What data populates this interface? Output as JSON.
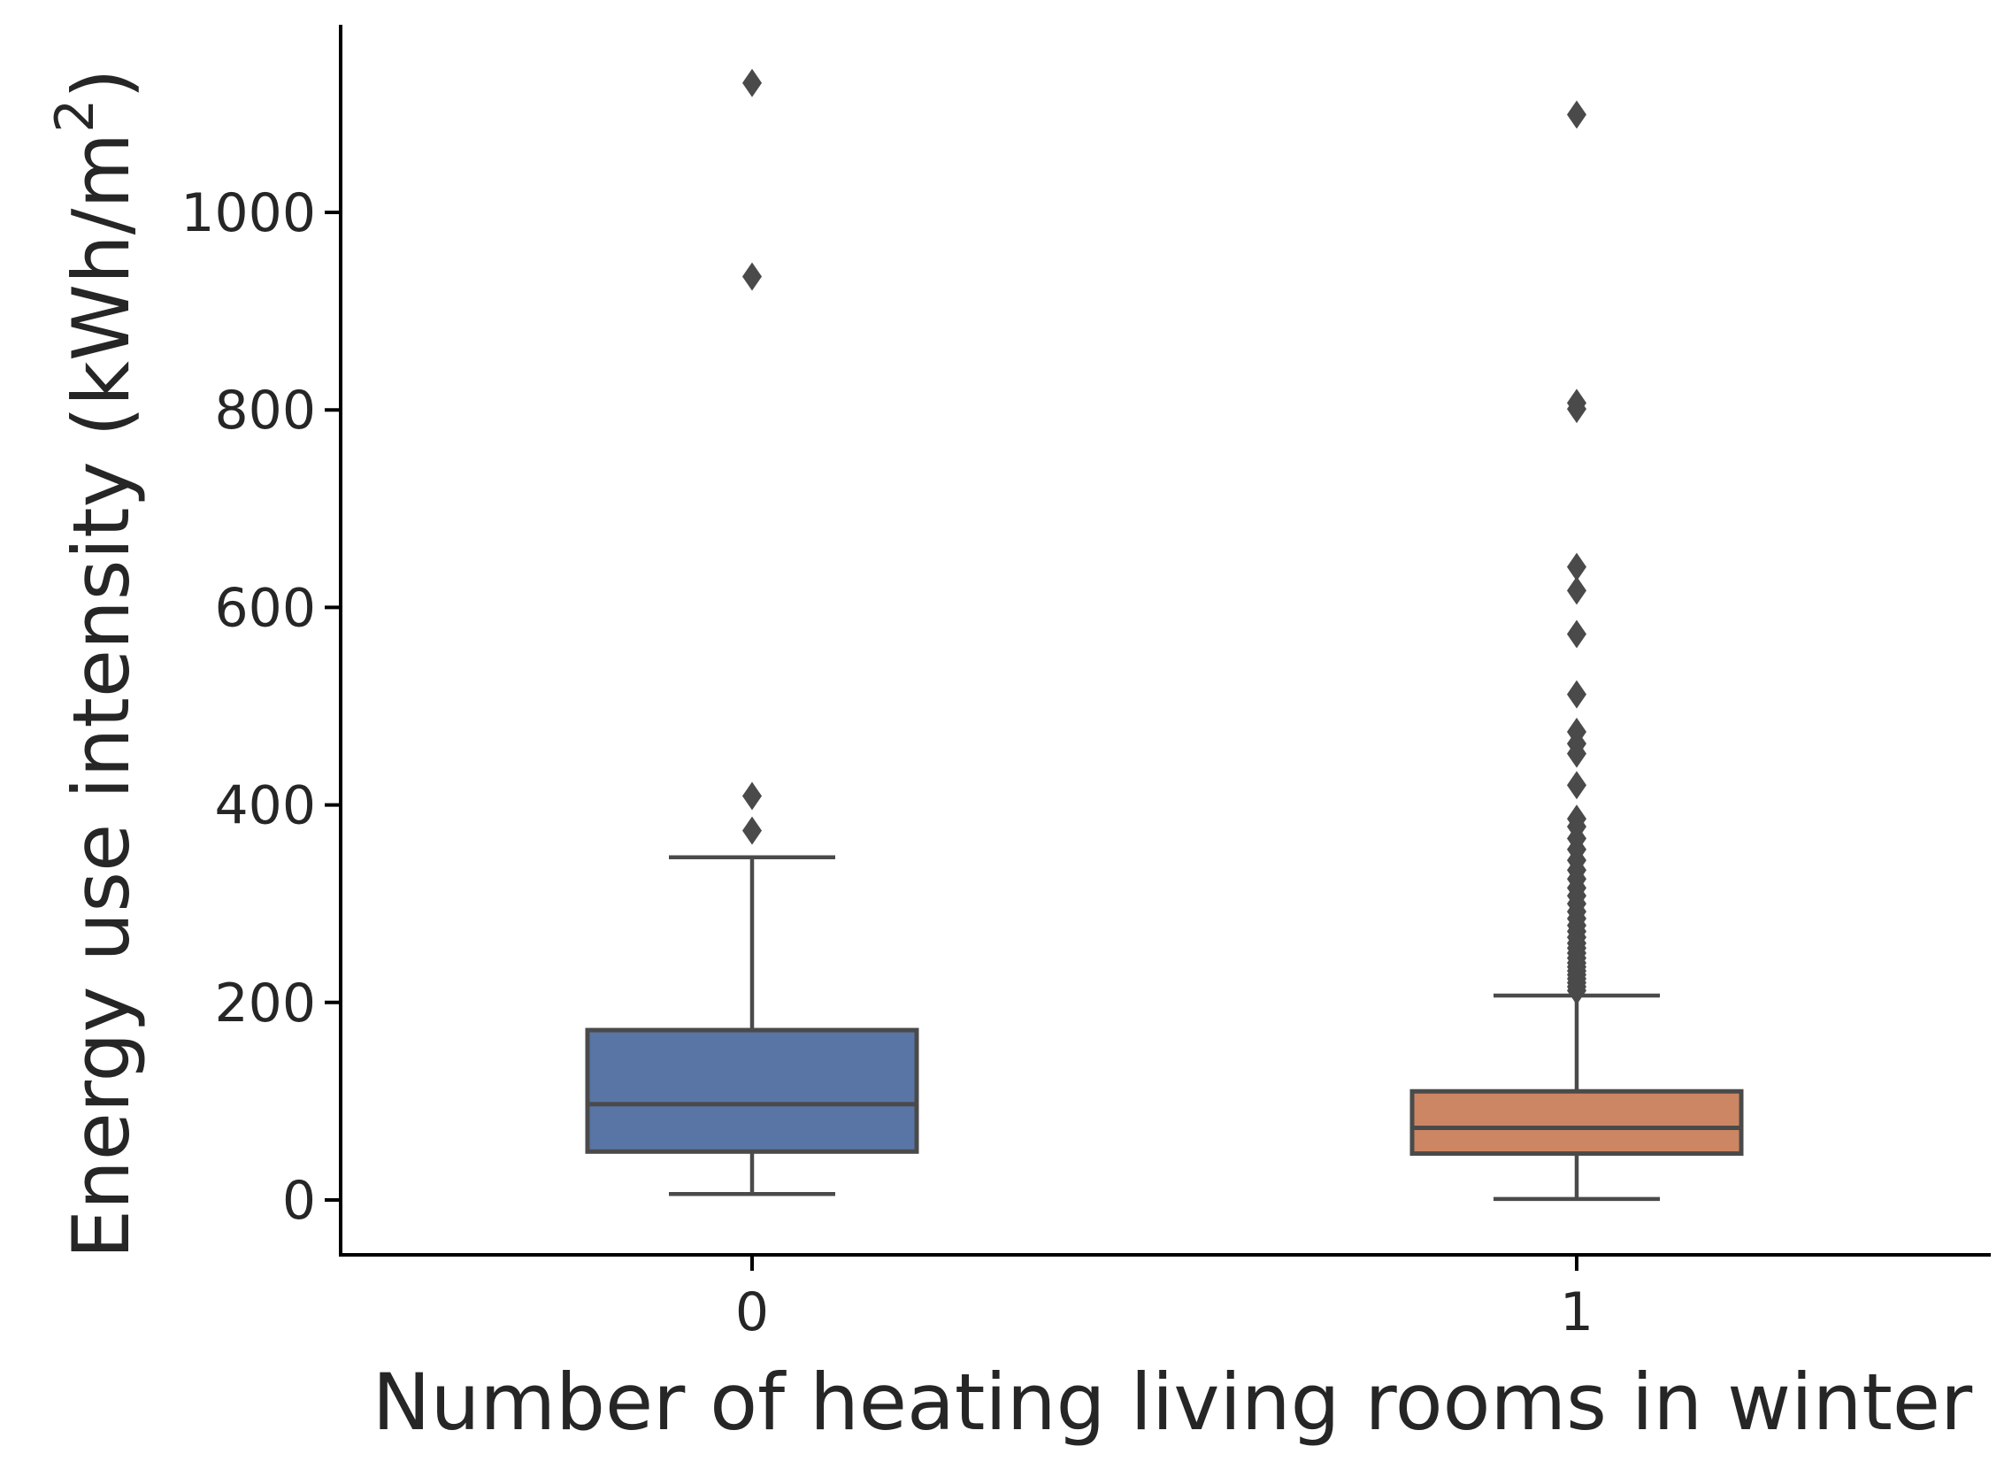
{
  "chart_data": {
    "type": "box",
    "xlabel": "Number of heating living rooms in winter",
    "ylabel": "Energy use intensity (kWh/m",
    "ylabel_superscript": "2",
    "ylabel_close": ")",
    "categories": [
      "0",
      "1"
    ],
    "yticks": [
      0,
      200,
      400,
      600,
      800,
      1000
    ],
    "ylim": [
      -55,
      1195
    ],
    "grid": false,
    "boxes": [
      {
        "category": "0",
        "color": "#5975a6",
        "whisker_low": 6,
        "q1": 49,
        "median": 97,
        "q3": 172,
        "whisker_high": 347,
        "outliers": [
          374,
          409,
          935,
          1131
        ]
      },
      {
        "category": "1",
        "color": "#cd8663",
        "whisker_low": 1,
        "q1": 47,
        "median": 73,
        "q3": 110,
        "whisker_high": 207,
        "outliers": [
          212,
          216,
          220,
          224,
          228,
          232,
          236,
          240,
          245,
          250,
          255,
          260,
          266,
          272,
          278,
          285,
          292,
          300,
          308,
          316,
          325,
          334,
          344,
          355,
          366,
          378,
          386,
          420,
          452,
          462,
          474,
          512,
          573,
          617,
          641,
          801,
          807,
          1099
        ]
      }
    ],
    "colors": {
      "line": "#4a4a4a",
      "axis": "#000000",
      "text": "#262626"
    }
  }
}
